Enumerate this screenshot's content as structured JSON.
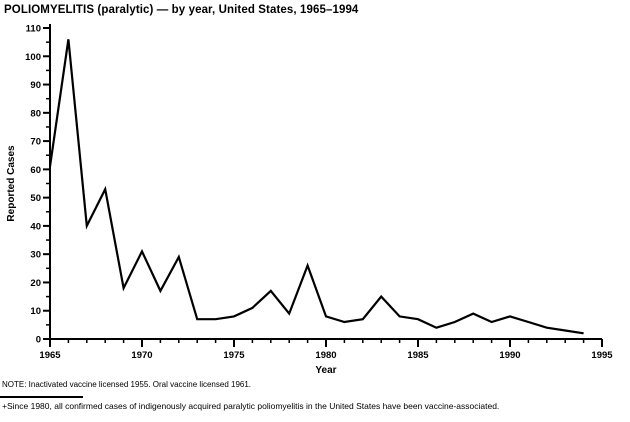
{
  "page": {
    "background": "#ffffff",
    "ink_color": "#000000"
  },
  "chart_data": {
    "type": "line",
    "title": "POLIOMYELITIS (paralytic) — by year, United States, 1965–1994",
    "xlabel": "Year",
    "ylabel": "Reported Cases",
    "x": [
      1965,
      1966,
      1967,
      1968,
      1969,
      1970,
      1971,
      1972,
      1973,
      1974,
      1975,
      1976,
      1977,
      1978,
      1979,
      1980,
      1981,
      1982,
      1983,
      1984,
      1985,
      1986,
      1987,
      1988,
      1989,
      1990,
      1991,
      1992,
      1993,
      1994
    ],
    "values": [
      61,
      106,
      40,
      53,
      18,
      31,
      17,
      29,
      7,
      7,
      8,
      11,
      17,
      9,
      26,
      8,
      6,
      7,
      15,
      8,
      7,
      4,
      6,
      9,
      6,
      8,
      6,
      4,
      3,
      2
    ],
    "xlim": [
      1965,
      1995
    ],
    "ylim": [
      0,
      110
    ],
    "x_major_ticks": [
      1965,
      1970,
      1975,
      1980,
      1985,
      1990,
      1995
    ],
    "x_minor_step": 1,
    "y_major_ticks": [
      0,
      10,
      20,
      30,
      40,
      50,
      60,
      70,
      80,
      90,
      100,
      110
    ],
    "y_minor_step": 5,
    "grid": false,
    "legend": "none",
    "line_color": "#000000",
    "line_width": 2.2
  },
  "notes": {
    "note": "NOTE: Inactivated vaccine licensed 1955. Oral vaccine licensed 1961.",
    "footnote": "+Since 1980, all confirmed cases of indigenously acquired paralytic poliomyelitis in the United States have been vaccine-associated."
  }
}
